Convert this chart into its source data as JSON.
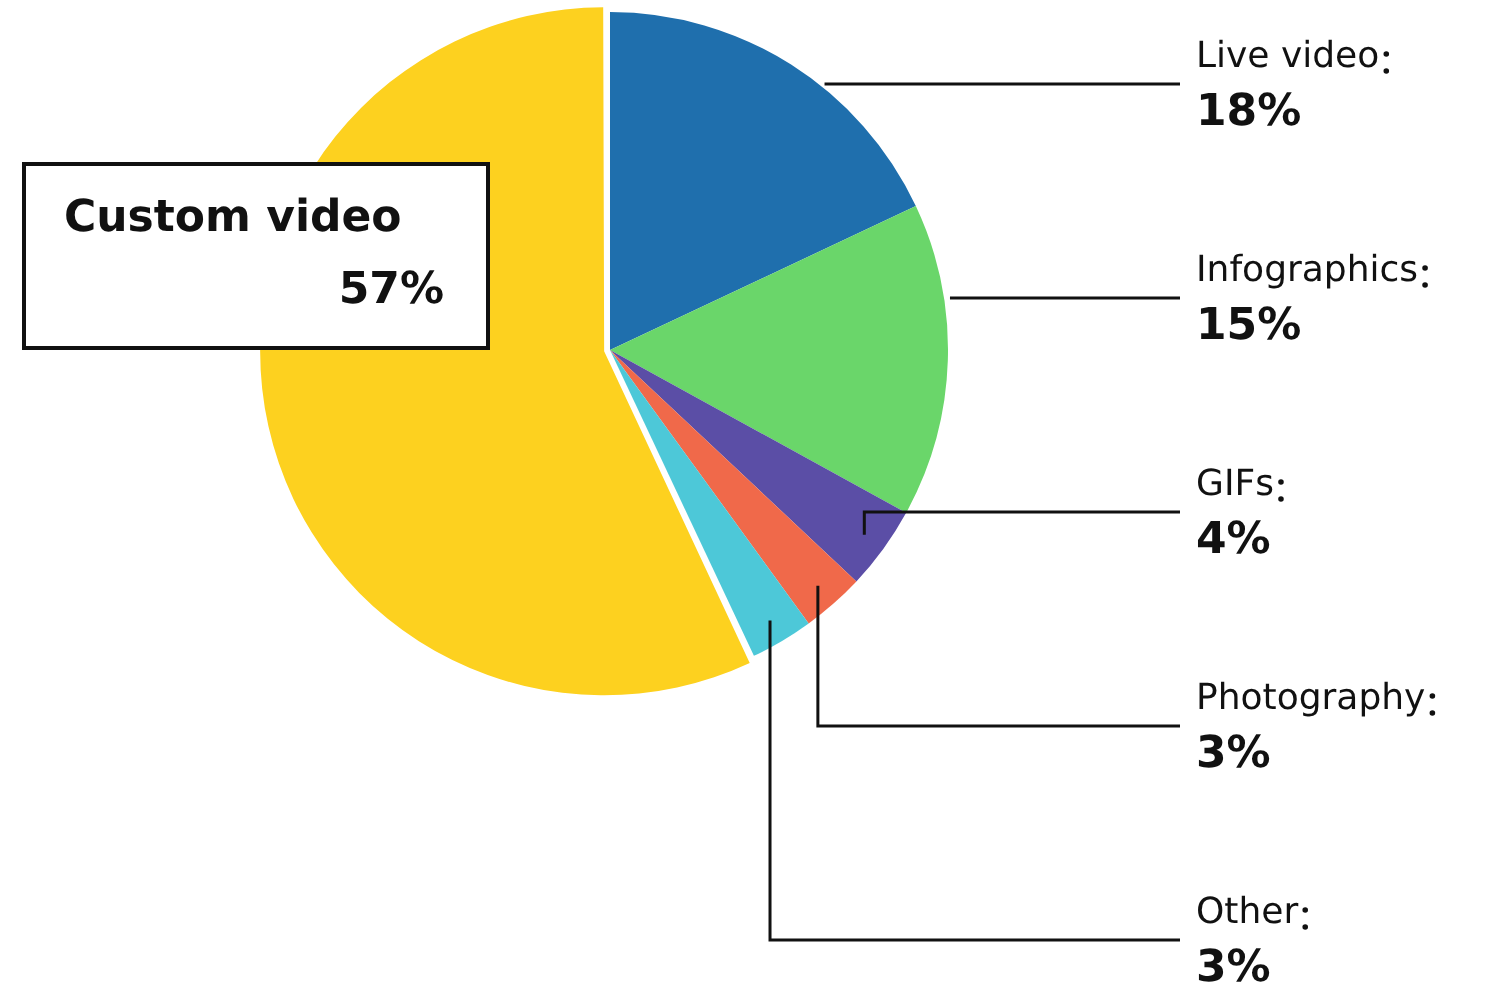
{
  "chart_data": {
    "type": "pie",
    "categories": [
      "Live video",
      "Infographics",
      "GIFs",
      "Photography",
      "Other",
      "Custom video"
    ],
    "values": [
      18,
      15,
      4,
      3,
      3,
      57
    ],
    "colors": [
      "#1f6fad",
      "#6ad66a",
      "#5b4ea6",
      "#f0694a",
      "#4dc8d8",
      "#fdd11f"
    ],
    "value_labels": [
      "18%",
      "15%",
      "4%",
      "3%",
      "3%",
      "57%"
    ],
    "legend": false
  }
}
